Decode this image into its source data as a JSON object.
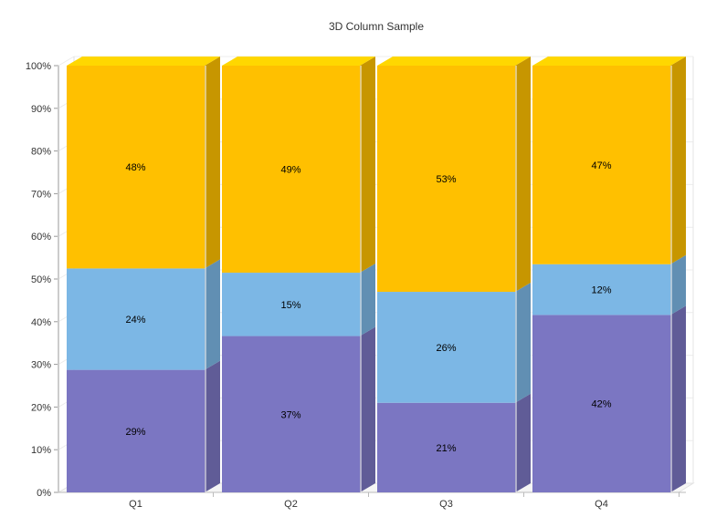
{
  "chart_data": {
    "type": "bar",
    "stacked": "percent",
    "three_d": true,
    "title": "3D Column Sample",
    "xlabel": "",
    "ylabel": "",
    "categories": [
      "Q1",
      "Q2",
      "Q3",
      "Q4"
    ],
    "ylim": [
      0,
      100
    ],
    "y_ticks": [
      "0%",
      "10%",
      "20%",
      "30%",
      "40%",
      "50%",
      "60%",
      "70%",
      "80%",
      "90%",
      "100%"
    ],
    "grid": true,
    "legend": "none",
    "series": [
      {
        "color": "#7b76c2",
        "values": [
          29,
          37,
          21,
          42
        ],
        "labels": [
          "29%",
          "37%",
          "21%",
          "42%"
        ]
      },
      {
        "color": "#7cb7e5",
        "values": [
          24,
          15,
          26,
          12
        ],
        "labels": [
          "24%",
          "15%",
          "26%",
          "12%"
        ]
      },
      {
        "color": "#ffc000",
        "values": [
          48,
          49,
          53,
          47
        ],
        "labels": [
          "48%",
          "49%",
          "53%",
          "47%"
        ]
      }
    ]
  }
}
